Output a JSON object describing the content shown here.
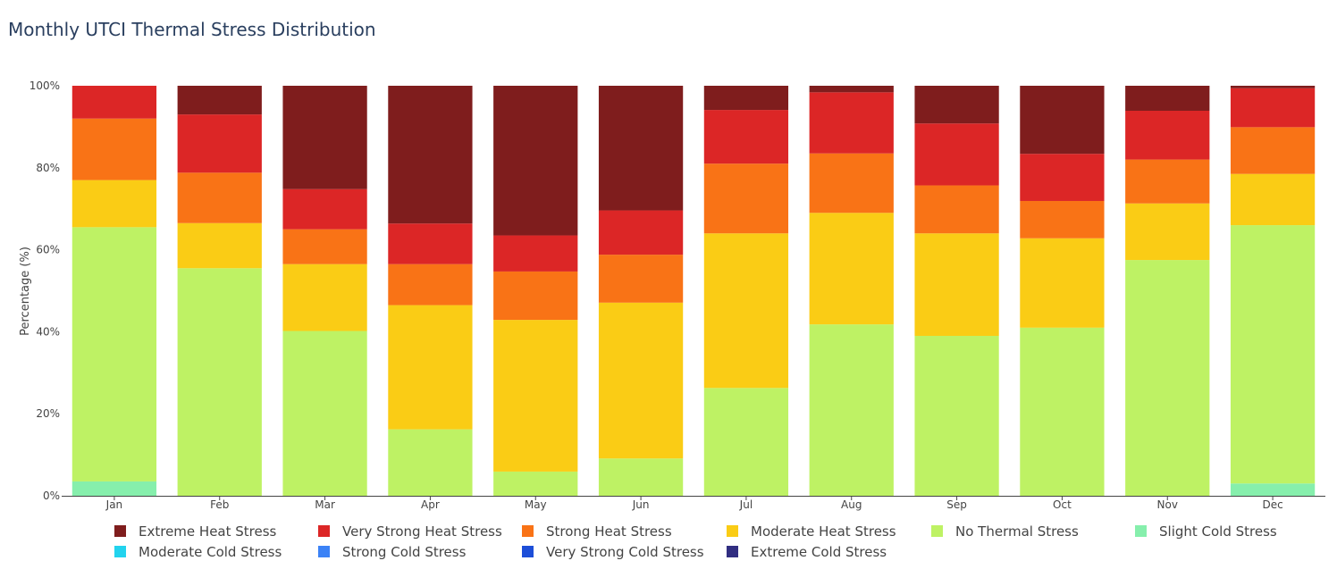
{
  "chart_data": {
    "type": "bar",
    "stacked": true,
    "title": "Monthly UTCI Thermal Stress Distribution",
    "xlabel": "",
    "ylabel": "Percentage (%)",
    "ylim": [
      0,
      100
    ],
    "y_ticks": [
      "0%",
      "20%",
      "40%",
      "60%",
      "80%",
      "100%"
    ],
    "grid": false,
    "legend_position": "bottom",
    "categories": [
      "Jan",
      "Feb",
      "Mar",
      "Apr",
      "May",
      "Jun",
      "Jul",
      "Aug",
      "Sep",
      "Oct",
      "Nov",
      "Dec"
    ],
    "series": [
      {
        "name": "Extreme Cold Stress",
        "color": "#312e81",
        "values": [
          0,
          0,
          0,
          0,
          0,
          0,
          0,
          0,
          0,
          0,
          0,
          0
        ]
      },
      {
        "name": "Very Strong Cold Stress",
        "color": "#1d4ed8",
        "values": [
          0,
          0,
          0,
          0,
          0,
          0,
          0,
          0,
          0,
          0,
          0,
          0
        ]
      },
      {
        "name": "Strong Cold Stress",
        "color": "#3b82f6",
        "values": [
          0,
          0,
          0,
          0,
          0,
          0,
          0,
          0,
          0,
          0,
          0,
          0
        ]
      },
      {
        "name": "Moderate Cold Stress",
        "color": "#22d3ee",
        "values": [
          0,
          0,
          0,
          0,
          0,
          0,
          0,
          0,
          0,
          0,
          0,
          0
        ]
      },
      {
        "name": "Slight Cold Stress",
        "color": "#86efac",
        "values": [
          3.5,
          0,
          0,
          0,
          0,
          0,
          0,
          0,
          0,
          0,
          0,
          3.0
        ]
      },
      {
        "name": "No Thermal Stress",
        "color": "#bef264",
        "values": [
          62.0,
          55.5,
          40.2,
          16.2,
          5.9,
          9.1,
          26.3,
          41.8,
          39.0,
          41.0,
          57.5,
          63.0
        ]
      },
      {
        "name": "Moderate Heat Stress",
        "color": "#facc15",
        "values": [
          11.5,
          11.0,
          16.3,
          30.3,
          37.0,
          38.0,
          37.7,
          27.2,
          25.0,
          21.8,
          13.8,
          12.5
        ]
      },
      {
        "name": "Strong Heat Stress",
        "color": "#f97316",
        "values": [
          15.0,
          12.3,
          8.5,
          10.0,
          11.8,
          11.7,
          17.0,
          14.5,
          11.7,
          9.1,
          10.7,
          11.4
        ]
      },
      {
        "name": "Very Strong Heat Stress",
        "color": "#dc2626",
        "values": [
          8.0,
          14.2,
          9.8,
          9.9,
          8.8,
          10.8,
          13.1,
          14.9,
          15.1,
          11.5,
          11.9,
          9.5
        ]
      },
      {
        "name": "Extreme Heat Stress",
        "color": "#7f1d1d",
        "values": [
          0,
          7.0,
          25.2,
          33.6,
          36.5,
          30.4,
          5.9,
          1.6,
          9.2,
          16.6,
          6.1,
          0.6
        ]
      }
    ],
    "legend_order": [
      "Extreme Heat Stress",
      "Very Strong Heat Stress",
      "Strong Heat Stress",
      "Moderate Heat Stress",
      "No Thermal Stress",
      "Slight Cold Stress",
      "Moderate Cold Stress",
      "Strong Cold Stress",
      "Very Strong Cold Stress",
      "Extreme Cold Stress"
    ]
  }
}
